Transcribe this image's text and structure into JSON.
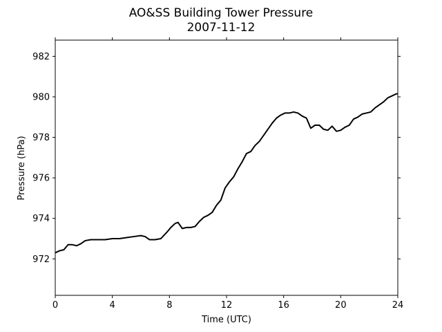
{
  "chart_data": {
    "type": "line",
    "title": "AO&SS Building Tower Pressure",
    "subtitle": "2007-11-12",
    "xlabel": "Time (UTC)",
    "ylabel": "Pressure (hPa)",
    "xlim": [
      0,
      24
    ],
    "ylim": [
      970.2,
      982.8
    ],
    "xticks": [
      0,
      4,
      8,
      12,
      16,
      20,
      24
    ],
    "yticks": [
      972,
      974,
      976,
      978,
      980,
      982
    ],
    "grid": false,
    "line_color": "#000000",
    "series": [
      {
        "x": [
          0,
          0.3,
          0.6,
          0.9,
          1.2,
          1.5,
          1.8,
          2.1,
          2.5,
          3.0,
          3.5,
          4.0,
          4.5,
          5.0,
          5.5,
          6.0,
          6.3,
          6.6,
          7.0,
          7.4,
          7.8,
          8.1,
          8.4,
          8.6,
          8.9,
          9.2,
          9.5,
          9.8,
          10.1,
          10.4,
          10.7,
          11.0,
          11.3,
          11.6,
          11.9,
          12.2,
          12.5,
          12.8,
          13.1,
          13.4,
          13.7,
          14.0,
          14.3,
          14.6,
          14.9,
          15.2,
          15.5,
          15.8,
          16.1,
          16.4,
          16.7,
          17.0,
          17.3,
          17.6,
          17.9,
          18.2,
          18.5,
          18.8,
          19.1,
          19.4,
          19.7,
          20.0,
          20.3,
          20.6,
          20.9,
          21.2,
          21.5,
          21.8,
          22.1,
          22.4,
          22.7,
          23.0,
          23.3,
          23.6,
          23.9,
          24.0
        ],
        "values": [
          972.3,
          972.4,
          972.45,
          972.7,
          972.7,
          972.65,
          972.75,
          972.9,
          972.95,
          972.95,
          972.95,
          973.0,
          973.0,
          973.05,
          973.1,
          973.15,
          973.1,
          972.95,
          972.95,
          973.0,
          973.3,
          973.55,
          973.75,
          973.8,
          973.5,
          973.55,
          973.55,
          973.6,
          973.85,
          974.05,
          974.15,
          974.3,
          974.65,
          974.9,
          975.5,
          975.8,
          976.05,
          976.45,
          976.8,
          977.2,
          977.3,
          977.6,
          977.8,
          978.1,
          978.4,
          978.7,
          978.95,
          979.1,
          979.2,
          979.2,
          979.25,
          979.2,
          979.05,
          978.95,
          978.45,
          978.6,
          978.6,
          978.4,
          978.35,
          978.55,
          978.3,
          978.35,
          978.5,
          978.6,
          978.9,
          979.0,
          979.15,
          979.2,
          979.25,
          979.45,
          979.6,
          979.75,
          979.95,
          980.05,
          980.15,
          980.15
        ]
      }
    ]
  }
}
